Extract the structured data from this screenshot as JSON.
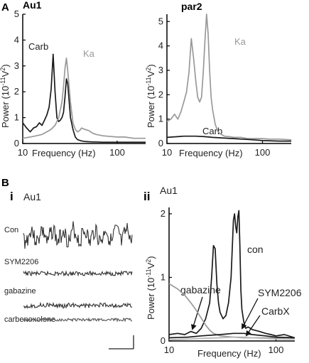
{
  "panel_labels": {
    "a": "A",
    "b": "B",
    "bi": "i",
    "bii": "ii"
  },
  "power_axis_label": "Power (10",
  "power_axis_exp": "-11",
  "power_axis_unit": "V",
  "power_axis_sq": "2",
  "power_axis_close": ")",
  "frequency_axis_label": "Frequency (Hz)",
  "traces_panel": {
    "title": "Au1",
    "traces": [
      {
        "label": "Con",
        "color": "#333333"
      },
      {
        "label": "SYM2206",
        "color": "#333333"
      },
      {
        "label": "gabazine",
        "color": "#333333"
      },
      {
        "label": "carbenoxolone",
        "color": "#555555"
      }
    ]
  },
  "colors": {
    "dark": "#1a1a1a",
    "gray": "#999999",
    "light": "#b5b5b5"
  },
  "chart_data": [
    {
      "type": "line",
      "title": "Au1",
      "xlabel": "Frequency (Hz)",
      "ylabel": "Power (10-11V2)",
      "xscale": "log",
      "xlim": [
        10,
        200
      ],
      "ylim": [
        0,
        5
      ],
      "x_ticks": [
        "10",
        "100"
      ],
      "y_ticks": [
        "0",
        "1",
        "2",
        "3",
        "4",
        "5"
      ],
      "series": [
        {
          "name": "Carb",
          "color": "#1a1a1a",
          "x": [
            10,
            11,
            12,
            13,
            14,
            15,
            16,
            17,
            18,
            19,
            20,
            21,
            22,
            23,
            24,
            25,
            26,
            27,
            28,
            29,
            30,
            32,
            34,
            36,
            38,
            40,
            42,
            45,
            50,
            55,
            60,
            70,
            80,
            100,
            120,
            150,
            200
          ],
          "y": [
            0.8,
            0.6,
            0.45,
            0.6,
            0.65,
            0.8,
            0.7,
            0.9,
            1.1,
            1.4,
            2.1,
            3.45,
            2.0,
            1.0,
            0.85,
            0.9,
            1.0,
            1.2,
            1.8,
            2.5,
            2.3,
            1.0,
            0.55,
            0.25,
            0.15,
            0.12,
            0.1,
            0.08,
            0.07,
            0.06,
            0.06,
            0.05,
            0.05,
            0.05,
            0.05,
            0.05,
            0.05
          ]
        },
        {
          "name": "Ka",
          "color": "#999999",
          "x": [
            10,
            12,
            14,
            16,
            18,
            20,
            22,
            24,
            26,
            27,
            28,
            29,
            30,
            31,
            32,
            34,
            36,
            38,
            40,
            42,
            45,
            50,
            55,
            60,
            70,
            80,
            100,
            120,
            150,
            200
          ],
          "y": [
            0.2,
            0.25,
            0.3,
            0.35,
            0.45,
            0.55,
            0.7,
            1.0,
            1.6,
            2.2,
            2.9,
            3.3,
            2.8,
            2.2,
            1.6,
            0.8,
            0.55,
            0.45,
            0.5,
            0.6,
            0.55,
            0.5,
            0.4,
            0.35,
            0.3,
            0.28,
            0.25,
            0.25,
            0.2,
            0.2
          ]
        }
      ]
    },
    {
      "type": "line",
      "title": "par2",
      "xlabel": "Frequency (Hz)",
      "ylabel": "Power (10-11V2)",
      "xscale": "log",
      "xlim": [
        10,
        200
      ],
      "ylim": [
        0,
        5.3
      ],
      "x_ticks": [
        "10",
        "100"
      ],
      "y_ticks": [
        "0",
        "1",
        "2",
        "3",
        "4",
        "5"
      ],
      "series": [
        {
          "name": "Ka",
          "color": "#999999",
          "x": [
            10,
            11,
            12,
            13,
            14,
            15,
            16,
            17,
            18,
            19,
            20,
            21,
            22,
            23,
            24,
            25,
            26,
            27,
            28,
            29,
            30,
            32,
            34,
            36,
            38,
            40,
            45,
            50,
            60,
            70,
            80,
            100,
            120,
            150,
            200
          ],
          "y": [
            0.9,
            1.0,
            1.2,
            1.0,
            1.3,
            1.7,
            2.1,
            2.9,
            4.3,
            3.5,
            2.6,
            1.9,
            1.7,
            1.9,
            2.9,
            4.2,
            5.3,
            4.5,
            3.0,
            1.9,
            1.4,
            0.8,
            0.5,
            0.4,
            0.35,
            0.3,
            0.28,
            0.25,
            0.25,
            0.2,
            0.2,
            0.2,
            0.18,
            0.18,
            0.15
          ]
        },
        {
          "name": "Carb",
          "color": "#1a1a1a",
          "x": [
            10,
            15,
            20,
            25,
            30,
            40,
            50,
            60,
            80,
            100,
            150,
            200
          ],
          "y": [
            0.25,
            0.3,
            0.3,
            0.28,
            0.25,
            0.22,
            0.2,
            0.18,
            0.15,
            0.12,
            0.1,
            0.1
          ]
        }
      ]
    },
    {
      "type": "line",
      "title": "Au1",
      "xlabel": "Frequency (Hz)",
      "ylabel": "Power (10-11V2)",
      "xscale": "log",
      "xlim": [
        10,
        150
      ],
      "ylim": [
        0,
        2.1
      ],
      "x_ticks": [
        "10",
        "100"
      ],
      "y_ticks": [
        "0",
        "1",
        "2"
      ],
      "series": [
        {
          "name": "con",
          "color": "#1a1a1a",
          "x": [
            10,
            12,
            14,
            16,
            18,
            20,
            22,
            24,
            25,
            26,
            27,
            28,
            29,
            30,
            32,
            34,
            36,
            38,
            40,
            41,
            42,
            43,
            44,
            45,
            46,
            47,
            48,
            50,
            52,
            55,
            60,
            70,
            80,
            90,
            100,
            120,
            150
          ],
          "y": [
            0.1,
            0.12,
            0.1,
            0.15,
            0.12,
            0.2,
            0.35,
            0.6,
            1.0,
            1.5,
            1.45,
            0.9,
            0.6,
            0.45,
            0.35,
            0.4,
            0.6,
            1.0,
            1.9,
            2.0,
            1.8,
            1.7,
            1.95,
            2.05,
            1.5,
            0.8,
            0.5,
            0.3,
            0.2,
            0.22,
            0.18,
            0.15,
            0.12,
            0.1,
            0.08,
            0.1,
            0.05
          ]
        },
        {
          "name": "gabazine",
          "color": "#999999",
          "x": [
            10,
            12,
            14,
            16,
            18,
            20,
            22,
            24,
            26,
            28,
            30,
            35,
            40,
            50,
            60,
            80,
            100,
            150
          ],
          "y": [
            0.9,
            0.82,
            0.72,
            0.6,
            0.48,
            0.36,
            0.25,
            0.17,
            0.12,
            0.1,
            0.08,
            0.07,
            0.06,
            0.05,
            0.05,
            0.05,
            0.05,
            0.05
          ]
        },
        {
          "name": "SYM2206",
          "color": "#1a1a1a",
          "x": [
            10,
            15,
            20,
            30,
            40,
            50,
            60,
            80,
            100,
            150
          ],
          "y": [
            0.05,
            0.06,
            0.08,
            0.1,
            0.12,
            0.12,
            0.1,
            0.08,
            0.06,
            0.05
          ]
        },
        {
          "name": "CarbX",
          "color": "#b5b5b5",
          "x": [
            10,
            15,
            20,
            30,
            40,
            50,
            60,
            80,
            100,
            150
          ],
          "y": [
            0.02,
            0.03,
            0.04,
            0.05,
            0.06,
            0.06,
            0.05,
            0.04,
            0.03,
            0.03
          ]
        }
      ]
    }
  ]
}
